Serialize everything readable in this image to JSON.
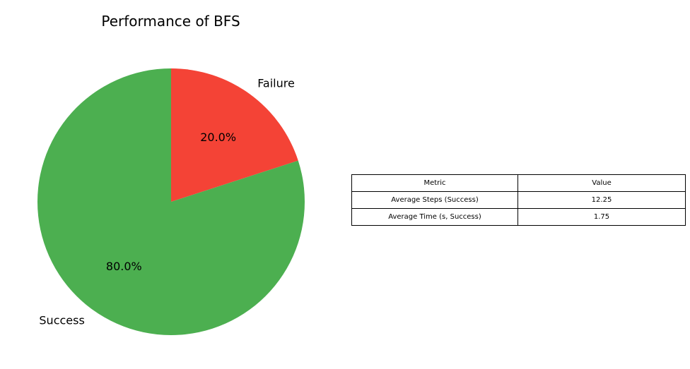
{
  "chart_data": [
    {
      "type": "pie",
      "title": "Performance of BFS",
      "slices": [
        {
          "label": "Failure",
          "value": 20.0,
          "pct_label": "20.0%",
          "color": "#f44336"
        },
        {
          "label": "Success",
          "value": 80.0,
          "pct_label": "80.0%",
          "color": "#4caf50"
        }
      ],
      "start_angle_deg": 90,
      "direction": "clockwise"
    },
    {
      "type": "table",
      "columns": [
        "Metric",
        "Value"
      ],
      "rows": [
        [
          "Average Steps (Success)",
          "12.25"
        ],
        [
          "Average Time (s, Success)",
          "1.75"
        ]
      ]
    }
  ]
}
